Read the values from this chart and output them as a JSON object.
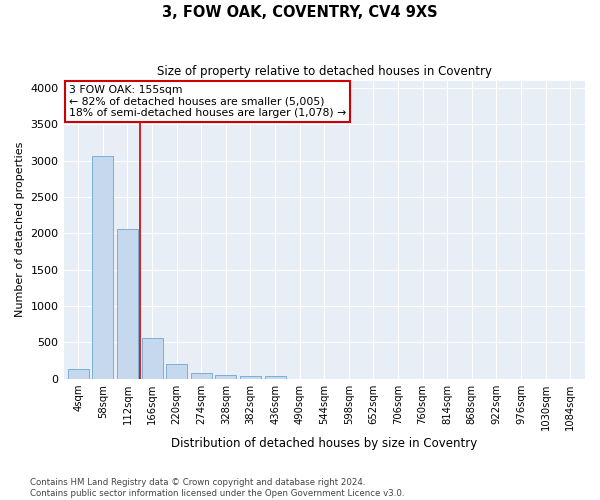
{
  "title": "3, FOW OAK, COVENTRY, CV4 9XS",
  "subtitle": "Size of property relative to detached houses in Coventry",
  "xlabel": "Distribution of detached houses by size in Coventry",
  "ylabel": "Number of detached properties",
  "bar_color": "#c5d8ee",
  "bar_edge_color": "#7aafd4",
  "background_color": "#e8eef6",
  "grid_color": "#ffffff",
  "categories": [
    "4sqm",
    "58sqm",
    "112sqm",
    "166sqm",
    "220sqm",
    "274sqm",
    "328sqm",
    "382sqm",
    "436sqm",
    "490sqm",
    "544sqm",
    "598sqm",
    "652sqm",
    "706sqm",
    "760sqm",
    "814sqm",
    "868sqm",
    "922sqm",
    "976sqm",
    "1030sqm",
    "1084sqm"
  ],
  "values": [
    140,
    3060,
    2060,
    560,
    210,
    75,
    50,
    45,
    45,
    0,
    0,
    0,
    0,
    0,
    0,
    0,
    0,
    0,
    0,
    0,
    0
  ],
  "vline_color": "#cc0000",
  "vline_x": 2.5,
  "annotation_line1": "3 FOW OAK: 155sqm",
  "annotation_line2": "← 82% of detached houses are smaller (5,005)",
  "annotation_line3": "18% of semi-detached houses are larger (1,078) →",
  "ylim": [
    0,
    4100
  ],
  "yticks": [
    0,
    500,
    1000,
    1500,
    2000,
    2500,
    3000,
    3500,
    4000
  ],
  "footer_line1": "Contains HM Land Registry data © Crown copyright and database right 2024.",
  "footer_line2": "Contains public sector information licensed under the Open Government Licence v3.0."
}
